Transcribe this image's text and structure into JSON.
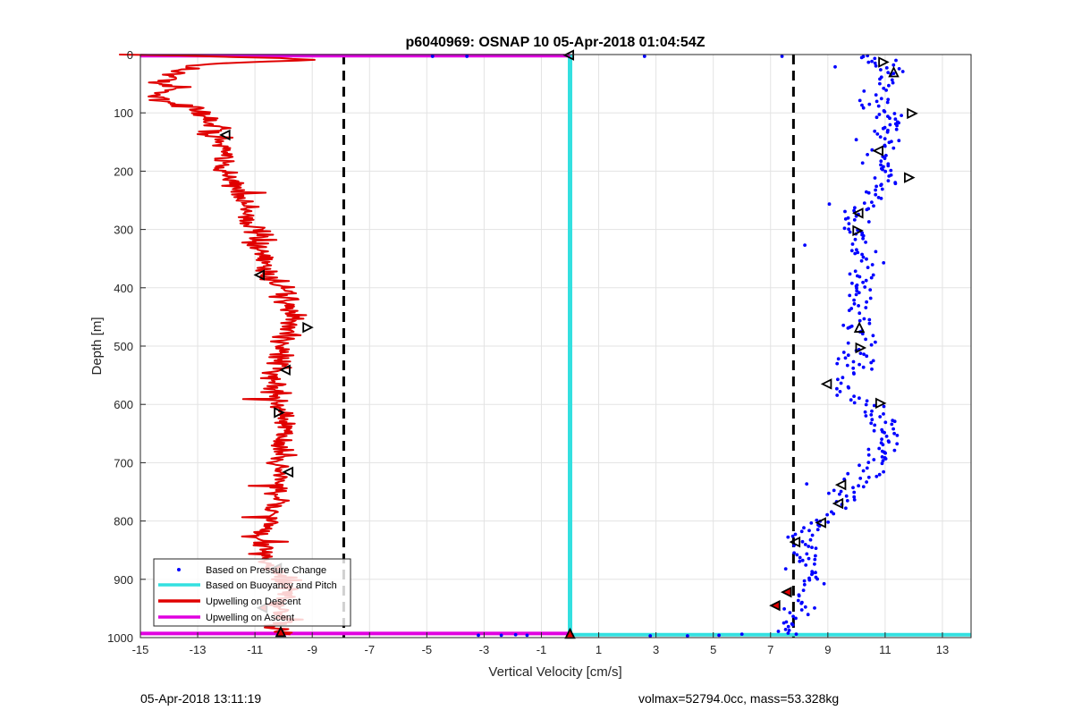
{
  "chart_data": {
    "type": "scatter",
    "title": "p6040969: OSNAP 10 05-Apr-2018 01:04:54Z",
    "xlabel": "Vertical Velocity [cm/s]",
    "ylabel": "Depth [m]",
    "xlim": [
      -15,
      14
    ],
    "ylim": [
      0,
      1000
    ],
    "y_reversed": true,
    "grid": true,
    "xticks": [
      -15,
      -13,
      -11,
      -9,
      -7,
      -5,
      -3,
      -1,
      1,
      3,
      5,
      7,
      9,
      11,
      13
    ],
    "yticks": [
      0,
      100,
      200,
      300,
      400,
      500,
      600,
      700,
      800,
      900,
      1000
    ],
    "legend": {
      "placement": "bottom-left",
      "entries": [
        {
          "label": "Based on Pressure Change",
          "color": "#0000ff",
          "style": "dot"
        },
        {
          "label": "Based on Buoyancy and Pitch",
          "color": "#33e0e0",
          "style": "line"
        },
        {
          "label": "Upwelling on Descent",
          "color": "#e00000",
          "style": "line"
        },
        {
          "label": "Upwelling on Ascent",
          "color": "#e000e0",
          "style": "line"
        }
      ]
    },
    "vertical_dashed_lines": [
      -7.9,
      7.8
    ],
    "series": [
      {
        "name": "Upwelling on Descent",
        "color": "#e00000",
        "profile": [
          [
            0,
            -14.9
          ],
          [
            2,
            -13.8
          ],
          [
            4,
            -11.5
          ],
          [
            7,
            -9.6
          ],
          [
            10,
            -9.3
          ],
          [
            14,
            -11.8
          ],
          [
            20,
            -13.2
          ],
          [
            30,
            -13.6
          ],
          [
            40,
            -14.0
          ],
          [
            50,
            -14.2
          ],
          [
            60,
            -14.0
          ],
          [
            70,
            -14.5
          ],
          [
            80,
            -14.1
          ],
          [
            90,
            -13.3
          ],
          [
            100,
            -13.0
          ],
          [
            110,
            -12.6
          ],
          [
            120,
            -12.4
          ],
          [
            140,
            -12.3
          ],
          [
            160,
            -12.1
          ],
          [
            180,
            -12.2
          ],
          [
            200,
            -12.0
          ],
          [
            220,
            -11.8
          ],
          [
            240,
            -11.5
          ],
          [
            260,
            -11.2
          ],
          [
            280,
            -11.3
          ],
          [
            300,
            -11.0
          ],
          [
            320,
            -10.9
          ],
          [
            340,
            -10.8
          ],
          [
            360,
            -10.7
          ],
          [
            380,
            -10.6
          ],
          [
            395,
            -10.1
          ],
          [
            410,
            -9.8
          ],
          [
            430,
            -9.9
          ],
          [
            450,
            -9.7
          ],
          [
            470,
            -9.8
          ],
          [
            490,
            -10.0
          ],
          [
            510,
            -10.1
          ],
          [
            530,
            -10.2
          ],
          [
            550,
            -10.3
          ],
          [
            570,
            -10.3
          ],
          [
            600,
            -10.2
          ],
          [
            620,
            -10.0
          ],
          [
            650,
            -10.0
          ],
          [
            680,
            -10.1
          ],
          [
            700,
            -10.2
          ],
          [
            720,
            -10.1
          ],
          [
            750,
            -10.2
          ],
          [
            780,
            -10.3
          ],
          [
            800,
            -10.4
          ],
          [
            820,
            -10.8
          ],
          [
            840,
            -10.9
          ],
          [
            860,
            -10.6
          ],
          [
            880,
            -10.4
          ],
          [
            900,
            -10.0
          ],
          [
            920,
            -9.9
          ],
          [
            940,
            -10.1
          ],
          [
            960,
            -10.0
          ],
          [
            980,
            -10.2
          ],
          [
            995,
            -10.2
          ]
        ]
      },
      {
        "name": "Based on Pressure Change",
        "color": "#0000ff",
        "profile": [
          [
            3,
            10.3
          ],
          [
            15,
            10.8
          ],
          [
            30,
            11.2
          ],
          [
            50,
            11.0
          ],
          [
            70,
            10.5
          ],
          [
            90,
            10.6
          ],
          [
            110,
            11.2
          ],
          [
            140,
            11.0
          ],
          [
            170,
            10.8
          ],
          [
            200,
            11.0
          ],
          [
            220,
            11.2
          ],
          [
            250,
            10.5
          ],
          [
            270,
            10.1
          ],
          [
            300,
            10.0
          ],
          [
            330,
            10.1
          ],
          [
            360,
            10.3
          ],
          [
            390,
            10.2
          ],
          [
            420,
            10.0
          ],
          [
            450,
            10.1
          ],
          [
            480,
            10.2
          ],
          [
            510,
            10.0
          ],
          [
            540,
            10.0
          ],
          [
            560,
            9.5
          ],
          [
            580,
            9.6
          ],
          [
            600,
            10.3
          ],
          [
            630,
            11.0
          ],
          [
            660,
            11.1
          ],
          [
            690,
            10.9
          ],
          [
            720,
            10.5
          ],
          [
            740,
            9.8
          ],
          [
            760,
            9.5
          ],
          [
            780,
            9.1
          ],
          [
            800,
            8.6
          ],
          [
            820,
            8.3
          ],
          [
            840,
            8.0
          ],
          [
            860,
            8.3
          ],
          [
            880,
            8.2
          ],
          [
            900,
            8.3
          ],
          [
            920,
            8.1
          ],
          [
            940,
            8.0
          ],
          [
            960,
            7.9
          ],
          [
            980,
            7.7
          ],
          [
            995,
            7.5
          ]
        ]
      },
      {
        "name": "Based on Buoyancy and Pitch",
        "color": "#33e0e0",
        "x": 0.0,
        "y_range": [
          0,
          1000
        ],
        "bottom_line": 995
      },
      {
        "name": "Upwelling on Ascent",
        "color": "#e000e0",
        "top_line": 2,
        "bottom_line": 993,
        "x_range": [
          -15,
          0
        ]
      }
    ],
    "markers": [
      {
        "x": -12.0,
        "y": 138,
        "dir": "left",
        "fill": "none"
      },
      {
        "x": -10.8,
        "y": 378,
        "dir": "left",
        "fill": "none"
      },
      {
        "x": -9.2,
        "y": 468,
        "dir": "right",
        "fill": "none"
      },
      {
        "x": -9.9,
        "y": 541,
        "dir": "left",
        "fill": "none"
      },
      {
        "x": -10.2,
        "y": 614,
        "dir": "right",
        "fill": "none"
      },
      {
        "x": -9.8,
        "y": 716,
        "dir": "left",
        "fill": "none"
      },
      {
        "x": -10.2,
        "y": 881,
        "dir": "left",
        "fill": "#e00000"
      },
      {
        "x": -10.7,
        "y": 949,
        "dir": "left",
        "fill": "#e00000"
      },
      {
        "x": -10.1,
        "y": 992,
        "dir": "up",
        "fill": "#e00000"
      },
      {
        "x": 0.0,
        "y": 1,
        "dir": "left",
        "fill": "none"
      },
      {
        "x": 0.0,
        "y": 995,
        "dir": "up",
        "fill": "#e00000"
      },
      {
        "x": 10.9,
        "y": 13,
        "dir": "right",
        "fill": "none"
      },
      {
        "x": 11.3,
        "y": 32,
        "dir": "up",
        "fill": "none"
      },
      {
        "x": 11.9,
        "y": 101,
        "dir": "right",
        "fill": "none"
      },
      {
        "x": 10.8,
        "y": 165,
        "dir": "left",
        "fill": "none"
      },
      {
        "x": 11.8,
        "y": 211,
        "dir": "right",
        "fill": "none"
      },
      {
        "x": 10.1,
        "y": 272,
        "dir": "left",
        "fill": "none"
      },
      {
        "x": 10.0,
        "y": 302,
        "dir": "right",
        "fill": "none"
      },
      {
        "x": 10.1,
        "y": 470,
        "dir": "up",
        "fill": "none"
      },
      {
        "x": 10.1,
        "y": 503,
        "dir": "right",
        "fill": "none"
      },
      {
        "x": 9.0,
        "y": 565,
        "dir": "left",
        "fill": "none"
      },
      {
        "x": 10.8,
        "y": 598,
        "dir": "right",
        "fill": "none"
      },
      {
        "x": 9.5,
        "y": 738,
        "dir": "left",
        "fill": "none"
      },
      {
        "x": 9.4,
        "y": 770,
        "dir": "left",
        "fill": "none"
      },
      {
        "x": 8.8,
        "y": 803,
        "dir": "left",
        "fill": "none"
      },
      {
        "x": 7.9,
        "y": 836,
        "dir": "left",
        "fill": "none"
      },
      {
        "x": 7.6,
        "y": 922,
        "dir": "left",
        "fill": "#e00000"
      },
      {
        "x": 7.2,
        "y": 945,
        "dir": "left",
        "fill": "#e00000"
      }
    ],
    "stray_blue_points": [
      [
        -4.8,
        3
      ],
      [
        -3.6,
        3
      ],
      [
        2.6,
        3
      ],
      [
        7.4,
        3
      ],
      [
        -3.2,
        996
      ],
      [
        -2.4,
        996
      ],
      [
        -1.9,
        995
      ],
      [
        -1.5,
        996
      ],
      [
        2.8,
        997
      ],
      [
        4.1,
        997
      ],
      [
        5.2,
        996
      ],
      [
        6.0,
        994
      ]
    ]
  },
  "footer": {
    "left": "05-Apr-2018 13:11:19",
    "right": "volmax=52794.0cc, mass=53.328kg"
  }
}
